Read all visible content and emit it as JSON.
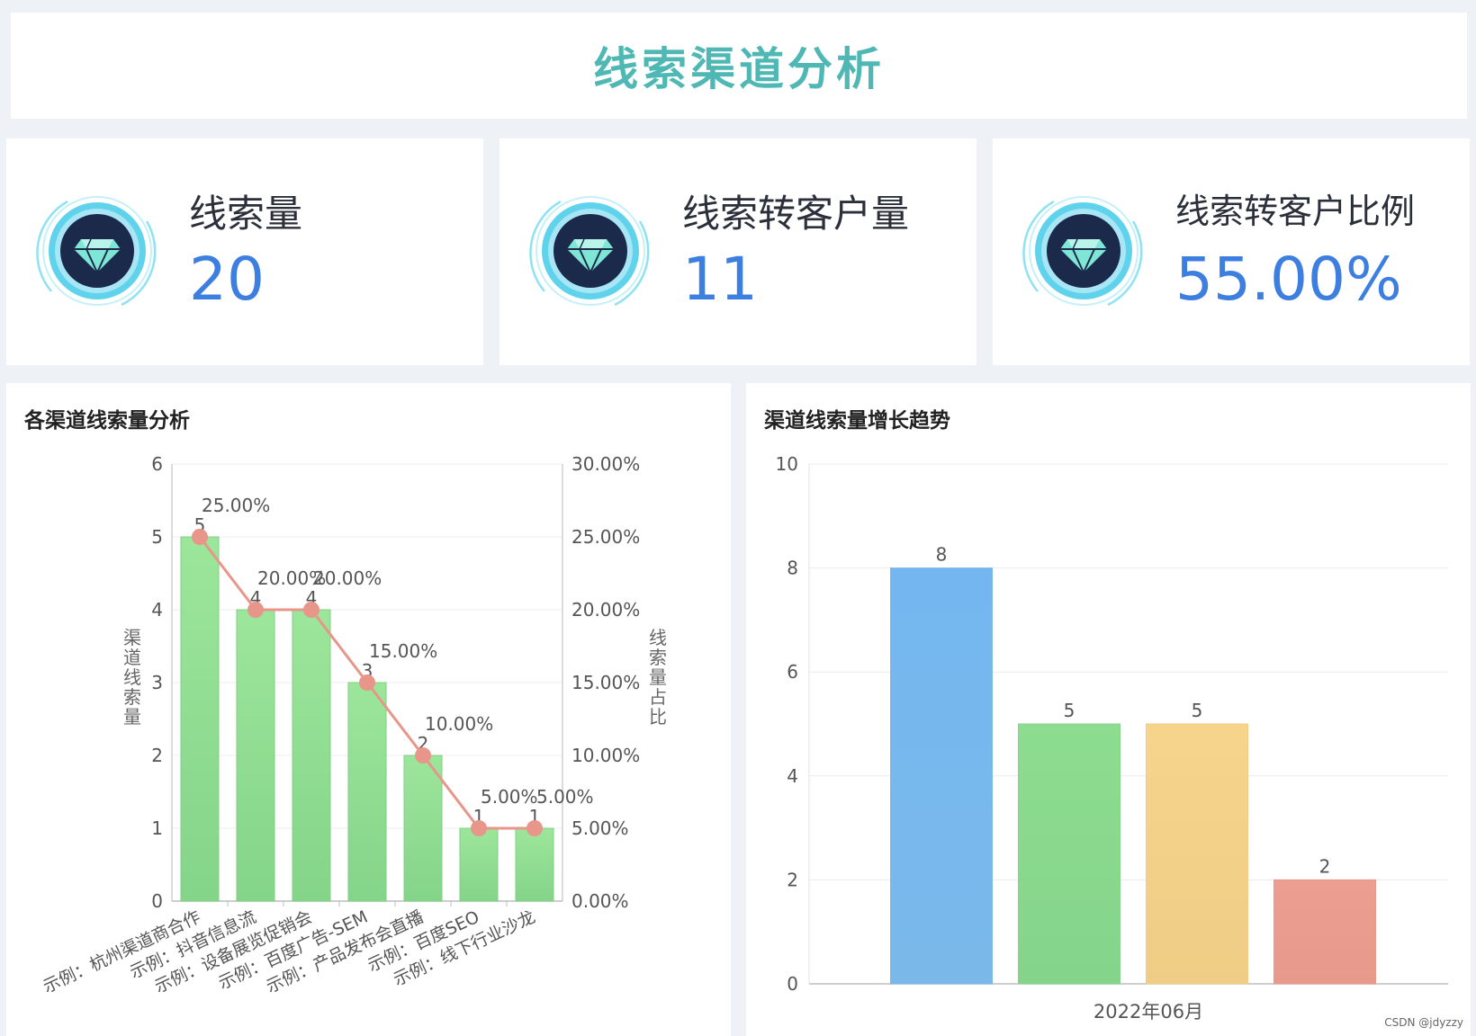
{
  "header": {
    "title": "线索渠道分析"
  },
  "kpis": [
    {
      "label": "线索量",
      "value": "20",
      "icon": "diamond-icon"
    },
    {
      "label": "线索转客户量",
      "value": "11",
      "icon": "diamond-icon"
    },
    {
      "label": "线索转客户比例",
      "value": "55.00%",
      "icon": "diamond-icon"
    }
  ],
  "chart_data": [
    {
      "type": "bar",
      "title": "各渠道线索量分析",
      "categories": [
        "示例：杭州渠道商合作",
        "示例：抖音信息流",
        "示例：设备展览促销会",
        "示例：百度广告-SEM",
        "示例：产品发布会直播",
        "示例：百度SEO",
        "示例：线下行业沙龙"
      ],
      "series": [
        {
          "type": "bar",
          "values": [
            5,
            4,
            4,
            3,
            2,
            1,
            1
          ],
          "color": "#8ddc8f"
        },
        {
          "type": "line",
          "values": [
            25,
            20,
            20,
            15,
            10,
            5,
            5
          ],
          "labels": [
            "25.00%",
            "20.00%",
            "20.00%",
            "15.00%",
            "10.00%",
            "5.00%",
            "5.00%"
          ],
          "color": "#e8958a"
        }
      ],
      "ylabel": "渠道线索量",
      "y2label": "线索量占比",
      "ylim": [
        0,
        6
      ],
      "y2lim": [
        0,
        30
      ],
      "yticks": [
        "0",
        "1",
        "2",
        "3",
        "4",
        "5",
        "6"
      ],
      "y2ticks": [
        "0.00%",
        "5.00%",
        "10.00%",
        "15.00%",
        "20.00%",
        "25.00%",
        "30.00%"
      ],
      "grid": true
    },
    {
      "type": "bar",
      "title": "渠道线索量增长趋势",
      "categories": [
        "2022年06月"
      ],
      "series": [
        {
          "values": [
            8
          ],
          "color": "#74b7f0"
        },
        {
          "values": [
            5
          ],
          "color": "#8ddc8f"
        },
        {
          "values": [
            5
          ],
          "color": "#f6d48b"
        },
        {
          "values": [
            2
          ],
          "color": "#ec9f90"
        }
      ],
      "ylim": [
        0,
        10
      ],
      "yticks": [
        "0",
        "2",
        "4",
        "6",
        "8",
        "10"
      ],
      "grid": true
    }
  ],
  "watermark": "CSDN @jdyzzy"
}
